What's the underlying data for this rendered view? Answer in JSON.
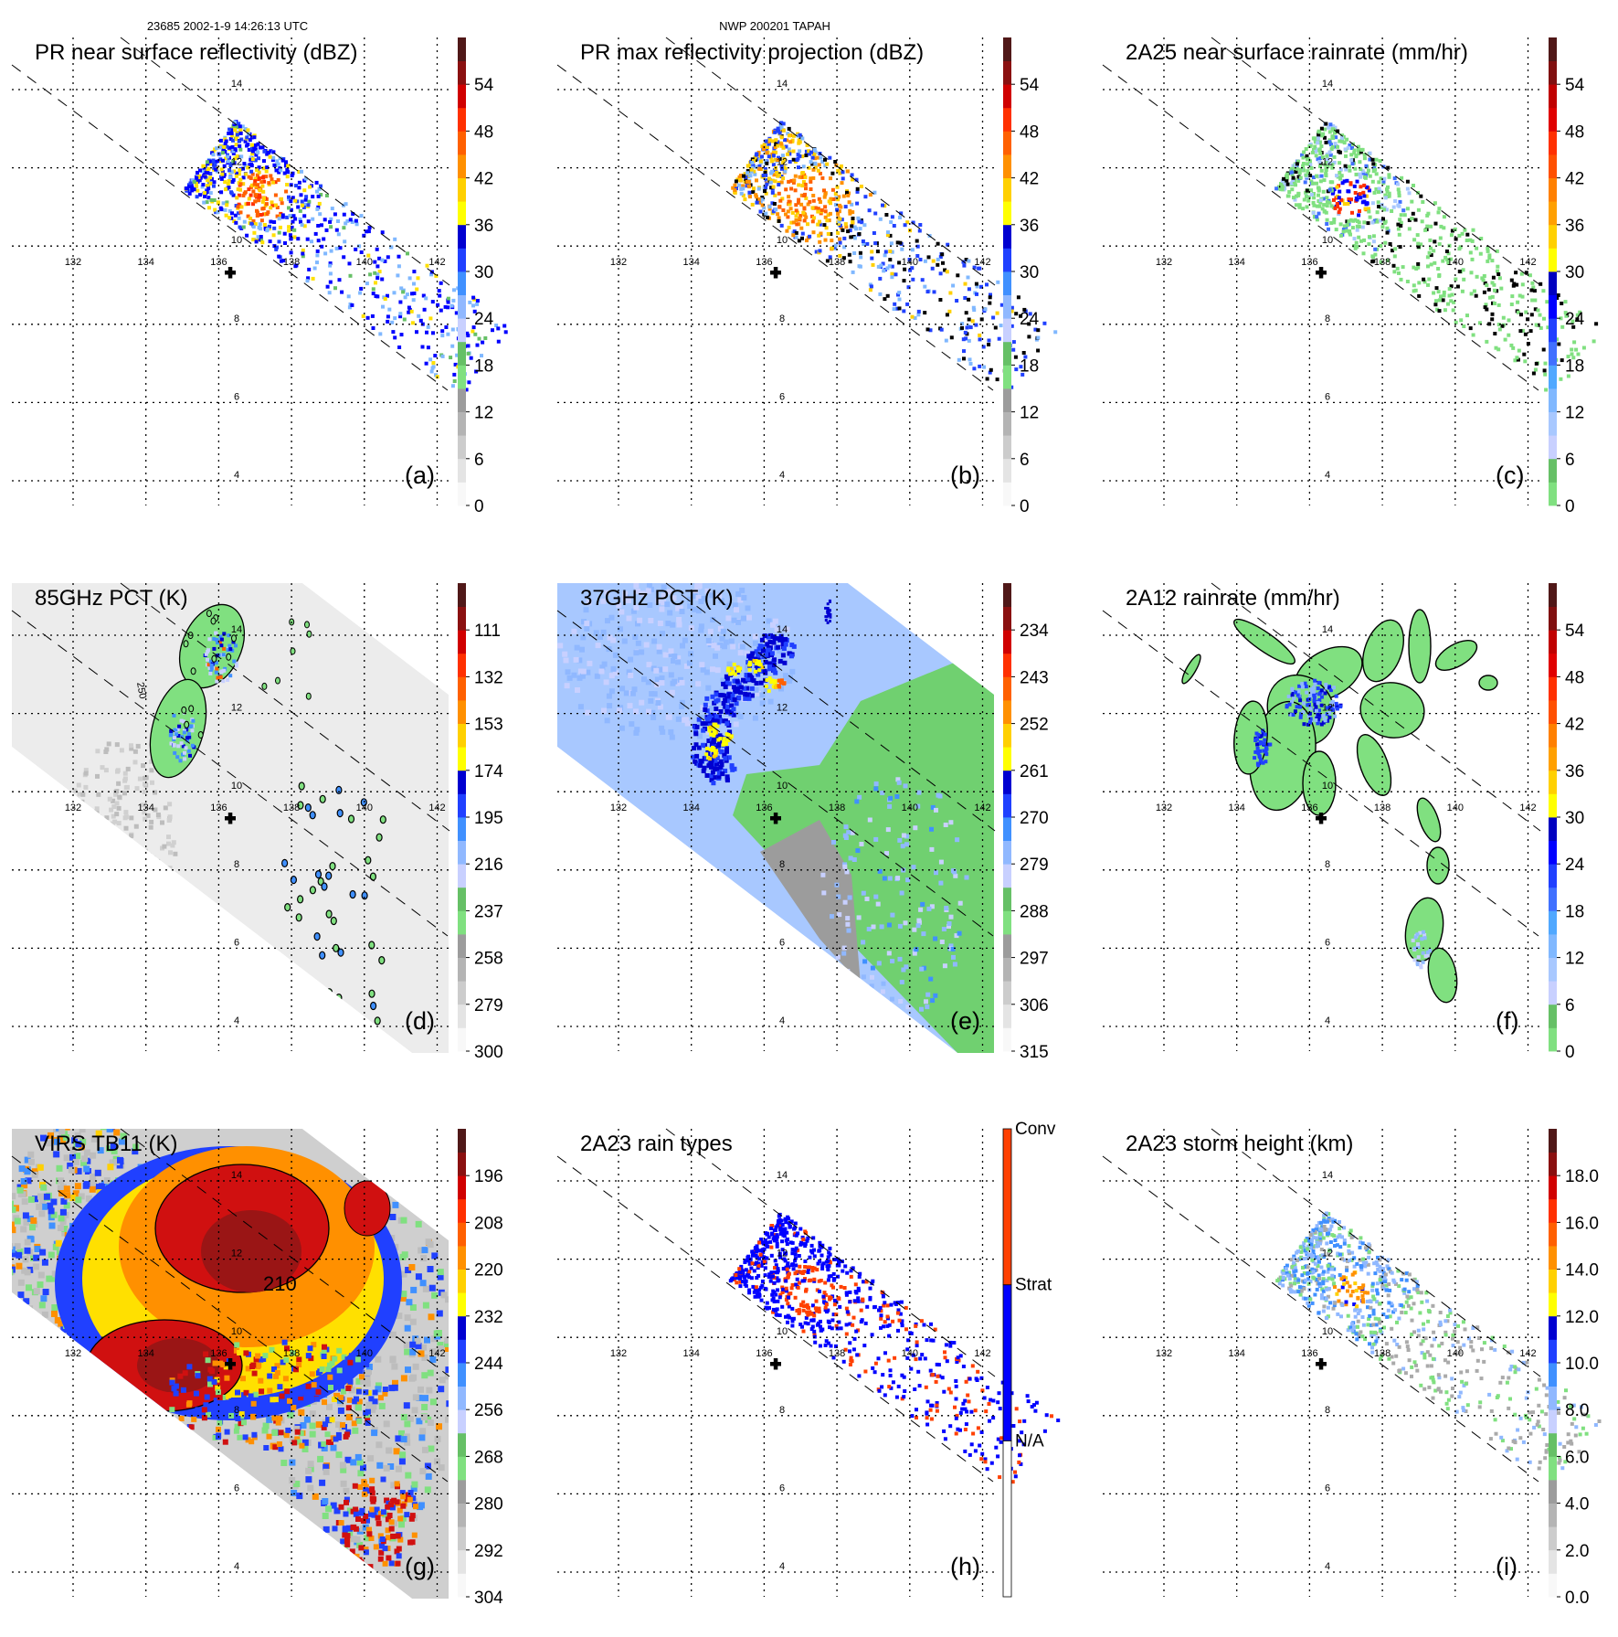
{
  "header": {
    "orbit_time": "23685 2002-1-9 14:26:13 UTC",
    "storm": "NWP 200201 TAPAH"
  },
  "map": {
    "lon_labels": [
      "132",
      "134",
      "136",
      "138",
      "140",
      "142"
    ],
    "lat_labels": [
      "14",
      "12",
      "10",
      "8",
      "6",
      "4"
    ],
    "storm_center_marker": "plus-icon"
  },
  "palettes": {
    "standard": [
      "#f8f8f8",
      "#e4e4e4",
      "#cccccc",
      "#b4b4b4",
      "#9c9c9c",
      "#80e080",
      "#66c066",
      "#c8d0ff",
      "#90b8ff",
      "#4090ff",
      "#2040ff",
      "#0000d0",
      "#ffff00",
      "#ffd000",
      "#ff9000",
      "#ff6000",
      "#ff3000",
      "#d00000",
      "#8a1010",
      "#501818"
    ],
    "rain": [
      "#80e080",
      "#66c066",
      "#c8d0ff",
      "#a8c8ff",
      "#80b8ff",
      "#50a8ff",
      "#4070ff",
      "#2040ff",
      "#0000ff",
      "#0000c0",
      "#ffff00",
      "#ffd000",
      "#ffa000",
      "#ff8000",
      "#ff5000",
      "#ff3000",
      "#e00000",
      "#c00000",
      "#801010",
      "#501818"
    ]
  },
  "panels": [
    {
      "id": "a",
      "title": "PR near surface reflectivity (dBZ)",
      "letter": "(a)",
      "palette": "standard",
      "ticks": [
        "0",
        "6",
        "12",
        "18",
        "24",
        "30",
        "36",
        "42",
        "48",
        "54"
      ]
    },
    {
      "id": "b",
      "title": "PR max reflectivity projection (dBZ)",
      "letter": "(b)",
      "palette": "standard",
      "ticks": [
        "0",
        "6",
        "12",
        "18",
        "24",
        "30",
        "36",
        "42",
        "48",
        "54"
      ]
    },
    {
      "id": "c",
      "title": "2A25 near surface rainrate (mm/hr)",
      "letter": "(c)",
      "palette": "rain",
      "ticks": [
        "0",
        "6",
        "12",
        "18",
        "24",
        "30",
        "36",
        "42",
        "48",
        "54"
      ]
    },
    {
      "id": "d",
      "title": "85GHz PCT (K)",
      "letter": "(d)",
      "palette": "standard",
      "ticks": [
        "300",
        "279",
        "258",
        "237",
        "216",
        "195",
        "174",
        "153",
        "132",
        "111"
      ],
      "contour_label": "250"
    },
    {
      "id": "e",
      "title": "37GHz PCT (K)",
      "letter": "(e)",
      "palette": "standard",
      "ticks": [
        "315",
        "306",
        "297",
        "288",
        "279",
        "270",
        "261",
        "252",
        "243",
        "234"
      ]
    },
    {
      "id": "f",
      "title": "2A12 rainrate (mm/hr)",
      "letter": "(f)",
      "palette": "rain",
      "ticks": [
        "0",
        "6",
        "12",
        "18",
        "24",
        "30",
        "36",
        "42",
        "48",
        "54"
      ]
    },
    {
      "id": "g",
      "title": "VIRS TB11 (K)",
      "letter": "(g)",
      "palette": "standard",
      "ticks": [
        "304",
        "292",
        "280",
        "268",
        "256",
        "244",
        "232",
        "220",
        "208",
        "196"
      ],
      "contour_label": "210"
    },
    {
      "id": "h",
      "title": "2A23 rain types",
      "letter": "(h)",
      "categories": [
        {
          "label": "N/A",
          "color": "#ffffff"
        },
        {
          "label": "Strat",
          "color": "#0000ff"
        },
        {
          "label": "Conv",
          "color": "#ff4000"
        }
      ]
    },
    {
      "id": "i",
      "title": "2A23 storm height (km)",
      "letter": "(i)",
      "palette": "standard",
      "ticks": [
        "0.0",
        "2.0",
        "4.0",
        "6.0",
        "8.0",
        "10.0",
        "12.0",
        "14.0",
        "16.0",
        "18.0"
      ]
    }
  ]
}
